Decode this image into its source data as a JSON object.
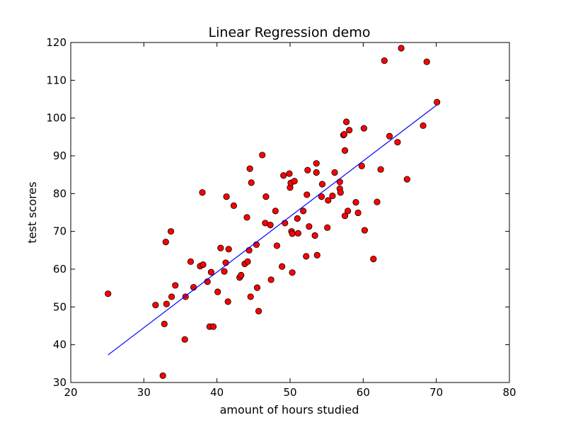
{
  "chart_data": {
    "type": "scatter",
    "title": "Linear Regression demo",
    "xlabel": "amount of hours studied",
    "ylabel": "test scores",
    "xlim": [
      20,
      80
    ],
    "ylim": [
      30,
      120
    ],
    "xticks": [
      20,
      30,
      40,
      50,
      60,
      70,
      80
    ],
    "yticks": [
      30,
      40,
      50,
      60,
      70,
      80,
      90,
      100,
      110,
      120
    ],
    "xtick_labels": [
      "20",
      "30",
      "40",
      "50",
      "60",
      "70",
      "80"
    ],
    "ytick_labels": [
      "30",
      "40",
      "50",
      "60",
      "70",
      "80",
      "90",
      "100",
      "110",
      "120"
    ],
    "grid": false,
    "legend": false,
    "point_color": "#ff0000",
    "point_edge_color": "#000000",
    "line_color": "#0000ff",
    "series": [
      {
        "type": "scatter",
        "points": [
          [
            25.1,
            53.5
          ],
          [
            31.6,
            50.5
          ],
          [
            32.6,
            31.8
          ],
          [
            32.8,
            45.5
          ],
          [
            33.0,
            67.2
          ],
          [
            33.1,
            50.8
          ],
          [
            33.7,
            70.0
          ],
          [
            33.8,
            52.7
          ],
          [
            34.3,
            55.7
          ],
          [
            35.6,
            41.4
          ],
          [
            35.7,
            52.7
          ],
          [
            36.4,
            62.0
          ],
          [
            36.8,
            55.2
          ],
          [
            37.7,
            60.8
          ],
          [
            38.0,
            80.3
          ],
          [
            38.1,
            61.2
          ],
          [
            38.7,
            56.7
          ],
          [
            39.0,
            44.8
          ],
          [
            39.2,
            59.2
          ],
          [
            39.5,
            44.8
          ],
          [
            40.1,
            54.0
          ],
          [
            40.5,
            65.6
          ],
          [
            41.0,
            59.4
          ],
          [
            41.2,
            61.7
          ],
          [
            41.3,
            79.2
          ],
          [
            41.5,
            51.4
          ],
          [
            41.6,
            65.3
          ],
          [
            42.3,
            76.8
          ],
          [
            43.1,
            57.8
          ],
          [
            43.3,
            58.4
          ],
          [
            43.8,
            61.4
          ],
          [
            44.1,
            73.7
          ],
          [
            44.2,
            62.0
          ],
          [
            44.4,
            65.0
          ],
          [
            44.5,
            86.6
          ],
          [
            44.6,
            52.7
          ],
          [
            44.7,
            82.9
          ],
          [
            45.4,
            66.5
          ],
          [
            45.5,
            55.1
          ],
          [
            45.7,
            48.9
          ],
          [
            46.2,
            90.2
          ],
          [
            46.6,
            72.2
          ],
          [
            46.7,
            79.2
          ],
          [
            47.3,
            71.7
          ],
          [
            47.4,
            57.2
          ],
          [
            48.0,
            75.4
          ],
          [
            48.2,
            66.2
          ],
          [
            48.9,
            60.7
          ],
          [
            49.1,
            84.8
          ],
          [
            49.3,
            72.2
          ],
          [
            49.9,
            85.3
          ],
          [
            50.0,
            81.6
          ],
          [
            50.1,
            82.8
          ],
          [
            50.2,
            70.0
          ],
          [
            50.3,
            69.4
          ],
          [
            50.3,
            59.1
          ],
          [
            50.6,
            83.3
          ],
          [
            51.0,
            73.4
          ],
          [
            51.1,
            69.5
          ],
          [
            51.8,
            75.4
          ],
          [
            52.2,
            63.4
          ],
          [
            52.3,
            79.7
          ],
          [
            52.4,
            86.2
          ],
          [
            52.6,
            71.3
          ],
          [
            53.4,
            68.9
          ],
          [
            53.6,
            88.0
          ],
          [
            53.6,
            85.6
          ],
          [
            53.7,
            63.7
          ],
          [
            54.3,
            79.2
          ],
          [
            54.4,
            82.5
          ],
          [
            55.1,
            71.0
          ],
          [
            55.2,
            78.2
          ],
          [
            55.8,
            79.4
          ],
          [
            56.1,
            85.6
          ],
          [
            56.8,
            83.1
          ],
          [
            56.8,
            81.3
          ],
          [
            56.9,
            80.3
          ],
          [
            57.3,
            95.5
          ],
          [
            57.4,
            95.7
          ],
          [
            57.5,
            91.4
          ],
          [
            57.5,
            74.1
          ],
          [
            57.7,
            99.0
          ],
          [
            57.9,
            75.4
          ],
          [
            58.1,
            96.8
          ],
          [
            59.0,
            77.7
          ],
          [
            59.3,
            74.9
          ],
          [
            59.8,
            87.3
          ],
          [
            60.1,
            97.3
          ],
          [
            60.2,
            70.3
          ],
          [
            61.4,
            62.7
          ],
          [
            61.9,
            77.8
          ],
          [
            62.4,
            86.4
          ],
          [
            62.9,
            115.2
          ],
          [
            63.6,
            95.2
          ],
          [
            64.7,
            93.6
          ],
          [
            65.2,
            118.5
          ],
          [
            66.0,
            83.8
          ],
          [
            68.2,
            98.0
          ],
          [
            68.7,
            114.9
          ],
          [
            70.1,
            104.2
          ]
        ]
      },
      {
        "type": "line",
        "points": [
          [
            25.1,
            37.3
          ],
          [
            70.1,
            103.5
          ]
        ]
      }
    ]
  }
}
